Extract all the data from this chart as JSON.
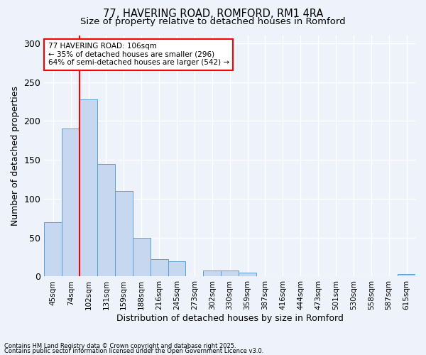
{
  "title1": "77, HAVERING ROAD, ROMFORD, RM1 4RA",
  "title2": "Size of property relative to detached houses in Romford",
  "xlabel": "Distribution of detached houses by size in Romford",
  "ylabel": "Number of detached properties",
  "categories": [
    "45sqm",
    "74sqm",
    "102sqm",
    "131sqm",
    "159sqm",
    "188sqm",
    "216sqm",
    "245sqm",
    "273sqm",
    "302sqm",
    "330sqm",
    "359sqm",
    "387sqm",
    "416sqm",
    "444sqm",
    "473sqm",
    "501sqm",
    "530sqm",
    "558sqm",
    "587sqm",
    "615sqm"
  ],
  "values": [
    70,
    190,
    228,
    145,
    110,
    50,
    22,
    20,
    0,
    8,
    8,
    5,
    0,
    0,
    0,
    0,
    0,
    0,
    0,
    0,
    3
  ],
  "bar_color": "#c5d8f0",
  "bar_edge_color": "#5a9fd4",
  "red_line_index": 2,
  "annotation_text": "77 HAVERING ROAD: 106sqm\n← 35% of detached houses are smaller (296)\n64% of semi-detached houses are larger (542) →",
  "annotation_box_color": "white",
  "annotation_box_edge": "red",
  "ylim": [
    0,
    310
  ],
  "yticks": [
    0,
    50,
    100,
    150,
    200,
    250,
    300
  ],
  "footnote1": "Contains HM Land Registry data © Crown copyright and database right 2025.",
  "footnote2": "Contains public sector information licensed under the Open Government Licence v3.0.",
  "bg_color": "#eef2fb",
  "grid_color": "white",
  "title_fontsize": 10.5,
  "subtitle_fontsize": 9.5
}
